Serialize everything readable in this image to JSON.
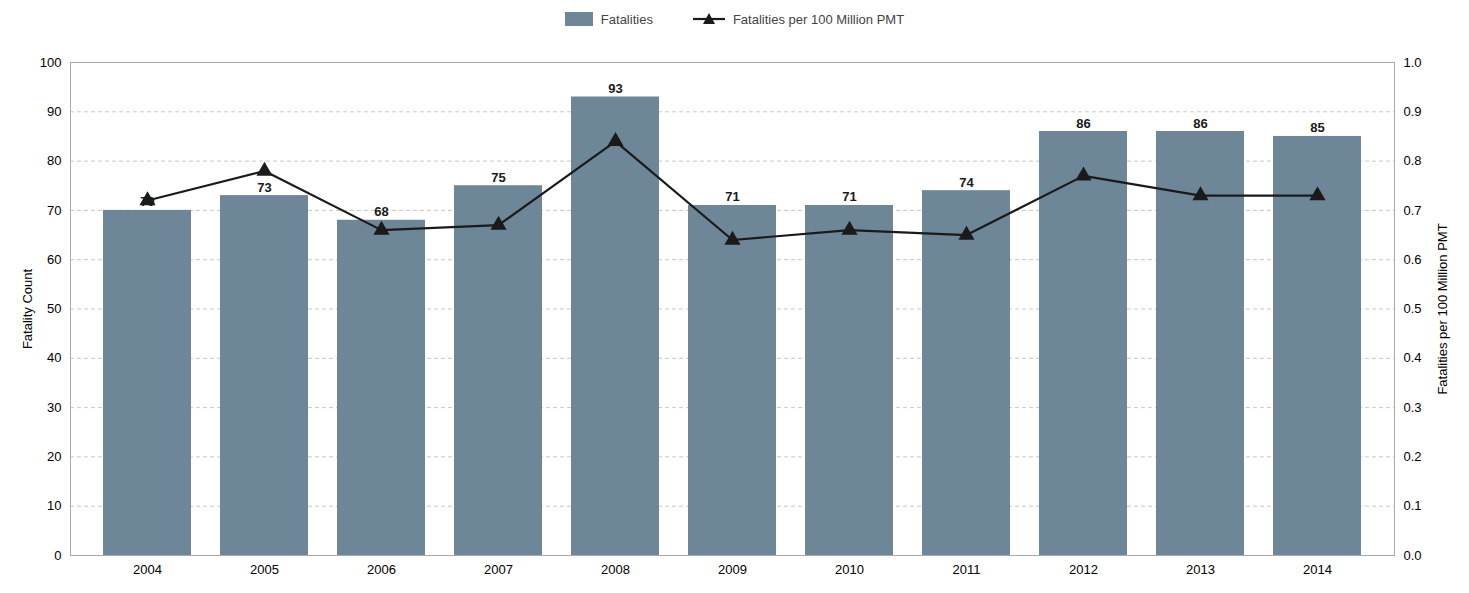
{
  "chart_data": {
    "type": "bar",
    "categories": [
      "2004",
      "2005",
      "2006",
      "2007",
      "2008",
      "2009",
      "2010",
      "2011",
      "2012",
      "2013",
      "2014"
    ],
    "series": [
      {
        "name": "Fatalities",
        "type": "bar",
        "color": "#6d8698",
        "data_labels": true,
        "values": [
          70,
          73,
          68,
          75,
          93,
          71,
          71,
          74,
          86,
          86,
          85
        ]
      },
      {
        "name": "Fatalities per 100 Million PMT",
        "type": "line",
        "color": "#1a1a1a",
        "marker": "triangle",
        "axis": "y2",
        "values": [
          0.72,
          0.78,
          0.66,
          0.67,
          0.84,
          0.64,
          0.66,
          0.65,
          0.77,
          0.73,
          0.73
        ]
      }
    ],
    "ylabel": "Fatality Count",
    "y2label": "Fatalities per 100 Million PMT",
    "ylim": [
      0,
      100
    ],
    "yticks": [
      0,
      10,
      20,
      30,
      40,
      50,
      60,
      70,
      80,
      90,
      100
    ],
    "y2lim": [
      0.0,
      1.0
    ],
    "y2ticks": [
      {
        "value": 0,
        "label": "0.0"
      },
      0.1,
      0.2,
      0.3,
      0.4,
      0.5,
      0.6,
      0.7,
      0.8,
      0.9,
      {
        "value": 1,
        "label": "1.0"
      }
    ],
    "grid": true,
    "legend": "top"
  }
}
